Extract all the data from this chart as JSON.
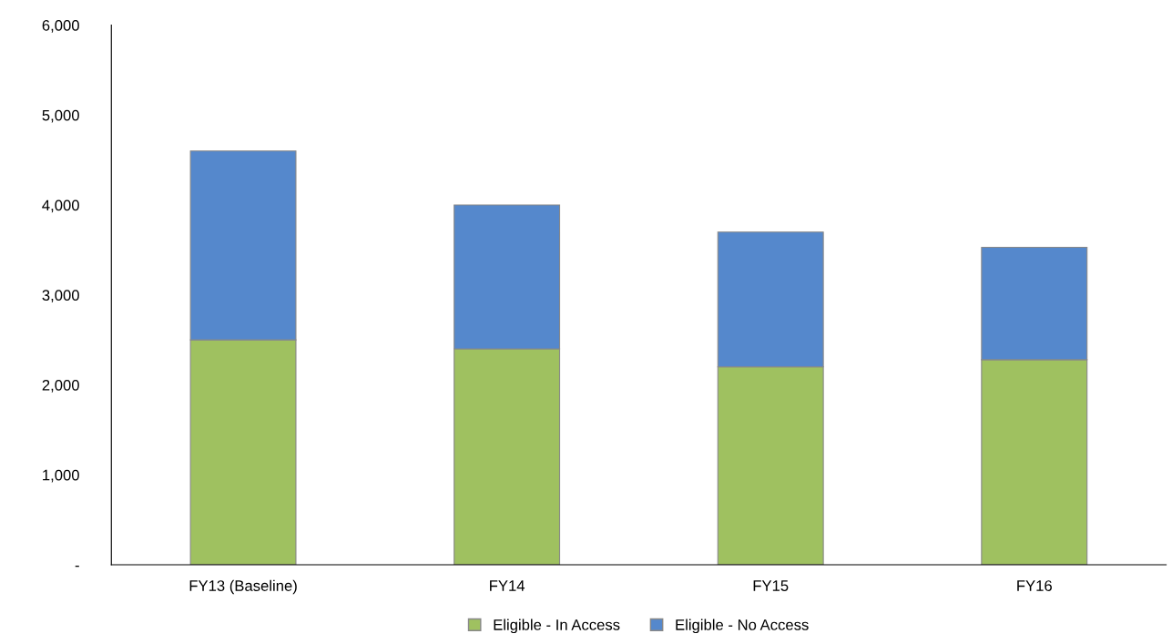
{
  "chart_data": {
    "type": "bar",
    "stacked": true,
    "categories": [
      "FY13 (Baseline)",
      "FY14",
      "FY15",
      "FY16"
    ],
    "series": [
      {
        "name": "Eligible - In Access",
        "color": "#9fc160",
        "values": [
          2500,
          2400,
          2200,
          2280
        ]
      },
      {
        "name": "Eligible - No Access",
        "color": "#5588cc",
        "values": [
          2100,
          1600,
          1500,
          1250
        ]
      }
    ],
    "ylim": [
      0,
      6000
    ],
    "yticks": [
      {
        "value": 0,
        "label": "-"
      },
      {
        "value": 1000,
        "label": "1,000"
      },
      {
        "value": 2000,
        "label": "2,000"
      },
      {
        "value": 3000,
        "label": "3,000"
      },
      {
        "value": 4000,
        "label": "4,000"
      },
      {
        "value": 5000,
        "label": "5,000"
      },
      {
        "value": 6000,
        "label": "6,000"
      }
    ],
    "grid": false,
    "legend": "bottom"
  }
}
